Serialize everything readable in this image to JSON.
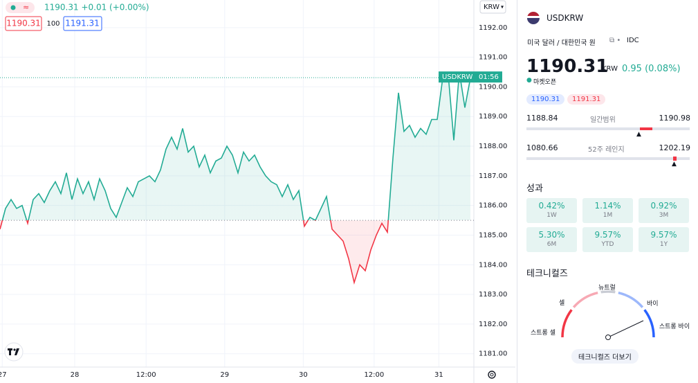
{
  "chart_data": {
    "type": "line",
    "series": [
      {
        "name": "USDKRW",
        "color": "#22ab94",
        "down_color": "#f23645",
        "values": [
          1185.2,
          1185.9,
          1186.2,
          1185.9,
          1186.0,
          1185.4,
          1186.2,
          1186.4,
          1186.1,
          1186.5,
          1186.8,
          1186.4,
          1187.1,
          1186.2,
          1186.9,
          1186.4,
          1186.8,
          1186.2,
          1186.9,
          1186.5,
          1185.9,
          1185.6,
          1186.1,
          1186.6,
          1186.3,
          1186.8,
          1186.9,
          1187.0,
          1186.8,
          1187.2,
          1187.9,
          1188.3,
          1187.9,
          1188.6,
          1187.8,
          1188.0,
          1187.3,
          1187.7,
          1187.1,
          1187.5,
          1187.6,
          1188.0,
          1187.7,
          1187.1,
          1187.8,
          1187.5,
          1187.7,
          1187.3,
          1187.0,
          1186.8,
          1186.7,
          1186.3,
          1186.7,
          1186.2,
          1186.5,
          1185.3,
          1185.6,
          1185.5,
          1185.9,
          1186.3,
          1185.2,
          1185.0,
          1184.8,
          1184.2,
          1183.4,
          1184.0,
          1183.8,
          1184.5,
          1185.0,
          1185.4,
          1185.1,
          1187.6,
          1189.8,
          1188.5,
          1188.7,
          1188.3,
          1188.6,
          1188.4,
          1188.9,
          1188.9,
          1190.3,
          1190.4,
          1188.2,
          1190.5,
          1189.3,
          1190.3
        ]
      }
    ],
    "baseline": 1185.5,
    "last_value": 1190.31,
    "last_time": "01:56",
    "xlim": [
      0,
      85
    ],
    "xticks": [
      {
        "value": 0.4,
        "label": "27"
      },
      {
        "value": 13.5,
        "label": "28"
      },
      {
        "value": 26.4,
        "label": "12:00"
      },
      {
        "value": 40.6,
        "label": "29"
      },
      {
        "value": 54.8,
        "label": "30"
      },
      {
        "value": 67.6,
        "label": "12:00"
      },
      {
        "value": 79.3,
        "label": "31"
      }
    ],
    "ylim": [
      1180.55,
      1192.93
    ],
    "yticks": [
      {
        "value": 1181,
        "label": "1181.00"
      },
      {
        "value": 1182,
        "label": "1182.00"
      },
      {
        "value": 1183,
        "label": "1183.00"
      },
      {
        "value": 1184,
        "label": "1184.00"
      },
      {
        "value": 1185,
        "label": "1185.00"
      },
      {
        "value": 1186,
        "label": "1186.00"
      },
      {
        "value": 1187,
        "label": "1187.00"
      },
      {
        "value": 1188,
        "label": "1188.00"
      },
      {
        "value": 1189,
        "label": "1189.00"
      },
      {
        "value": 1190,
        "label": "1190.00"
      },
      {
        "value": 1191,
        "label": "1191.00"
      },
      {
        "value": 1192,
        "label": "1192.00"
      }
    ],
    "grid": true,
    "header": {
      "quote": "1190.31 +0.01 (+0.00%)",
      "bid": "1190.31",
      "size": "100",
      "ask": "1191.31",
      "currency": "KRW"
    }
  },
  "panel": {
    "symbol": "USDKRW",
    "description": "미국 달러 / 대한민국 원",
    "source": "IDC",
    "price": "1190.31",
    "currency": "KRW",
    "change": "0.95 (0.08%)",
    "status": "마켓오픈",
    "bid": "1190.31",
    "ask": "1191.31",
    "day_range": {
      "low": "1188.84",
      "label": "일간범위",
      "high": "1190.98"
    },
    "week52_range": {
      "low": "1080.66",
      "label": "52주 레인지",
      "high": "1202.19"
    },
    "performance_title": "성과",
    "performance": [
      {
        "value": "0.42%",
        "label": "1W"
      },
      {
        "value": "1.14%",
        "label": "1M"
      },
      {
        "value": "0.92%",
        "label": "3M"
      },
      {
        "value": "5.30%",
        "label": "6M"
      },
      {
        "value": "9.57%",
        "label": "YTD"
      },
      {
        "value": "9.57%",
        "label": "1Y"
      }
    ],
    "technicals_title": "테크니컬즈",
    "gauge": {
      "strong_sell": "스트롱 셀",
      "sell": "셀",
      "neutral": "뉴트럴",
      "buy": "바이",
      "strong_buy": "스트롱 바이"
    },
    "more_button": "테크니컬즈 더보기"
  }
}
